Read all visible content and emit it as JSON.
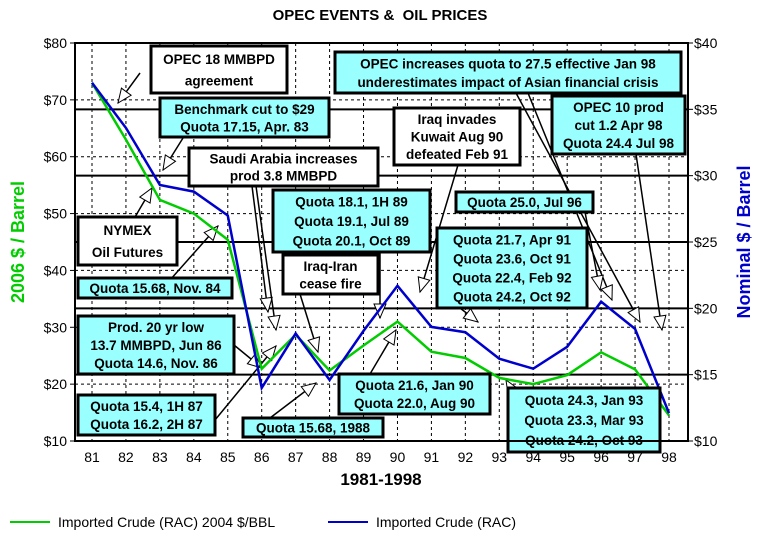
{
  "chart_data": {
    "type": "line",
    "title": "OPEC EVENTS &  OIL PRICES",
    "xlabel": "1981-1998",
    "ylabel_left": "2006 $ / Barrel",
    "ylabel_right": "Nominal $ / Barrel",
    "categories": [
      "81",
      "82",
      "83",
      "84",
      "85",
      "86",
      "87",
      "88",
      "89",
      "90",
      "91",
      "92",
      "93",
      "94",
      "95",
      "96",
      "97",
      "98"
    ],
    "y_left": {
      "range": [
        10,
        80
      ],
      "ticks": [
        "$10",
        "$20",
        "$30",
        "$40",
        "$50",
        "$60",
        "$70",
        "$80"
      ],
      "color": "#00cc00"
    },
    "y_right": {
      "range": [
        10,
        40
      ],
      "ticks": [
        "$10",
        "$15",
        "$20",
        "$25",
        "$30",
        "$35",
        "$40"
      ],
      "color": "#0000cc"
    },
    "grid": true,
    "legend_placement": "bottom",
    "series": [
      {
        "name": "Imported Crude (RAC) 2004 $/BBL",
        "axis": "left",
        "color": "#00cc00",
        "values": [
          73.0,
          63.0,
          52.4,
          50.0,
          45.4,
          22.7,
          28.7,
          22.4,
          26.8,
          31.0,
          25.7,
          24.6,
          21.1,
          20.0,
          21.6,
          25.6,
          22.6,
          14.5
        ]
      },
      {
        "name": "Imported Crude (RAC)",
        "axis": "right",
        "color": "#0000cc",
        "values": [
          37.0,
          33.6,
          29.3,
          28.8,
          27.0,
          14.0,
          18.1,
          14.6,
          18.3,
          21.7,
          18.6,
          18.2,
          16.2,
          15.45,
          17.1,
          20.5,
          18.45,
          12.1
        ]
      }
    ],
    "annotations": [
      {
        "id": "opec-18",
        "fill": "#ffffff",
        "lines": [
          "OPEC 18 MMBPD",
          "agreement"
        ]
      },
      {
        "id": "benchmark",
        "fill": "#99ffff",
        "lines": [
          "Benchmark cut to $29",
          "Quota 17.15, Apr. 83"
        ]
      },
      {
        "id": "saudi",
        "fill": "#ffffff",
        "lines": [
          "Saudi Arabia increases",
          "prod 3.8 MMBPD"
        ]
      },
      {
        "id": "nymex",
        "fill": "#ffffff",
        "lines": [
          "NYMEX",
          "Oil Futures"
        ]
      },
      {
        "id": "nov84",
        "fill": "#99ffff",
        "lines": [
          "Quota 15.68, Nov. 84"
        ]
      },
      {
        "id": "q89",
        "fill": "#99ffff",
        "lines": [
          "Quota 18.1, 1H 89",
          "Quota 19.1, Jul 89",
          "Quota 20.1, Oct 89"
        ]
      },
      {
        "id": "iraq-iran",
        "fill": "#ffffff",
        "lines": [
          "Iraq-Iran",
          "cease fire"
        ]
      },
      {
        "id": "asian",
        "fill": "#99ffff",
        "lines": [
          "OPEC increases quota to 27.5 effective Jan 98",
          "underestimates impact of Asian financial crisis"
        ]
      },
      {
        "id": "kuwait",
        "fill": "#ffffff",
        "lines": [
          "Iraq invades",
          "Kuwait Aug 90",
          "defeated Feb 91"
        ]
      },
      {
        "id": "opec10",
        "fill": "#99ffff",
        "lines": [
          "OPEC 10 prod",
          "cut 1.2 Apr 98",
          "Quota 24.4 Jul 98"
        ]
      },
      {
        "id": "jul96",
        "fill": "#99ffff",
        "lines": [
          "Quota 25.0, Jul 96"
        ]
      },
      {
        "id": "q91",
        "fill": "#99ffff",
        "lines": [
          "Quota 21.7, Apr 91",
          "Quota 23.6, Oct 91",
          "Quota 22.4, Feb 92",
          "Quota 24.2, Oct 92"
        ]
      },
      {
        "id": "low86",
        "fill": "#99ffff",
        "lines": [
          "Prod. 20 yr low",
          "13.7 MMBPD, Jun 86",
          "Quota 14.6, Nov. 86"
        ]
      },
      {
        "id": "q87",
        "fill": "#99ffff",
        "lines": [
          "Quota 15.4, 1H 87",
          "Quota 16.2, 2H 87"
        ]
      },
      {
        "id": "q88",
        "fill": "#99ffff",
        "lines": [
          "Quota 15.68, 1988"
        ]
      },
      {
        "id": "q90",
        "fill": "#99ffff",
        "lines": [
          "Quota 21.6, Jan 90",
          "Quota 22.0, Aug 90"
        ]
      },
      {
        "id": "q93",
        "fill": "#99ffff",
        "lines": [
          "Quota 24.3, Jan 93",
          "Quota 23.3, Mar 93",
          "Quota 24.2, Oct 93"
        ]
      }
    ]
  }
}
